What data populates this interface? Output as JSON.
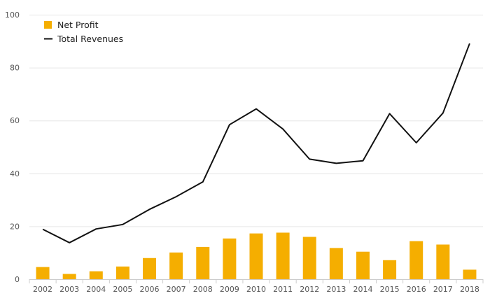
{
  "chart_data": {
    "type": "bar",
    "categories": [
      "2002",
      "2003",
      "2004",
      "2005",
      "2006",
      "2007",
      "2008",
      "2009",
      "2010",
      "2011",
      "2012",
      "2013",
      "2014",
      "2015",
      "2016",
      "2017",
      "2018"
    ],
    "series": [
      {
        "name": "Net Profit",
        "type": "bar",
        "color": "#f5ae00",
        "values": [
          4.6,
          2.0,
          3.0,
          4.8,
          8.0,
          10.1,
          12.2,
          15.4,
          17.3,
          17.6,
          16.0,
          11.8,
          10.4,
          7.2,
          14.4,
          13.1,
          3.6
        ]
      },
      {
        "name": "Total Revenues",
        "type": "line",
        "color": "#111111",
        "values": [
          18.9,
          13.8,
          19.0,
          20.7,
          26.4,
          31.2,
          36.8,
          58.4,
          64.4,
          56.8,
          45.4,
          43.8,
          44.8,
          62.6,
          51.6,
          62.8,
          89.1
        ]
      }
    ],
    "y_ticks": [
      "0",
      "20",
      "40",
      "60",
      "80",
      "100"
    ],
    "ylim": [
      0,
      100
    ],
    "grid": true,
    "legend": {
      "position": "top-left",
      "items": [
        {
          "label": "Net Profit",
          "symbol": "square",
          "color": "#f5ae00"
        },
        {
          "label": "Total Revenues",
          "symbol": "line",
          "color": "#111111"
        }
      ]
    }
  }
}
